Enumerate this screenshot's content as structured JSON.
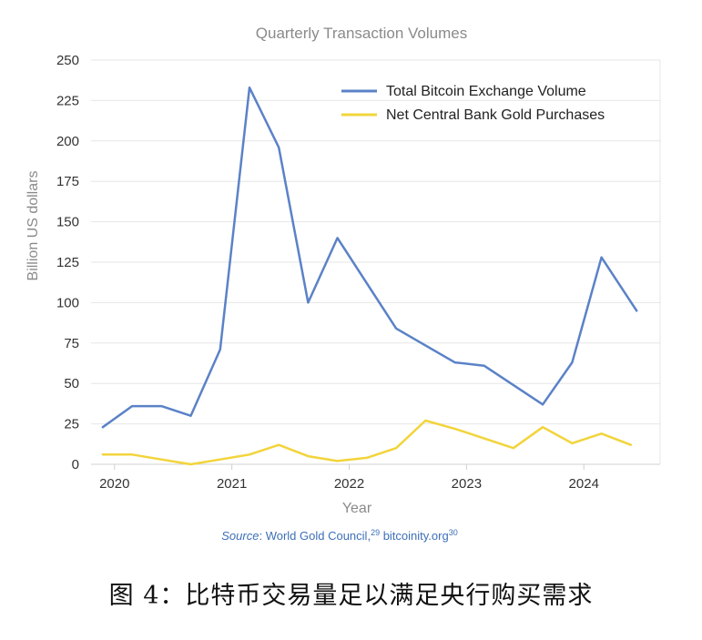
{
  "chart_data": {
    "type": "line",
    "title": "Quarterly Transaction Volumes",
    "xlabel": "Year",
    "ylabel": "Billion US dollars",
    "xlim": [
      2019.8,
      2024.65
    ],
    "ylim": [
      0,
      250
    ],
    "yticks": [
      0,
      25,
      50,
      75,
      100,
      125,
      150,
      175,
      200,
      225,
      250
    ],
    "xticks": [
      2020,
      2021,
      2022,
      2023,
      2024
    ],
    "grid": true,
    "legend_position": "top-right",
    "series": [
      {
        "name": "Total Bitcoin Exchange Volume",
        "color": "#5b82c7",
        "x": [
          2019.9,
          2020.15,
          2020.4,
          2020.65,
          2020.9,
          2021.15,
          2021.4,
          2021.65,
          2021.9,
          2022.4,
          2022.9,
          2023.15,
          2023.65,
          2023.9,
          2024.15,
          2024.45
        ],
        "values": [
          23,
          36,
          36,
          30,
          71,
          233,
          196,
          100,
          140,
          84,
          63,
          61,
          37,
          63,
          128,
          95
        ]
      },
      {
        "name": "Net Central Bank Gold Purchases",
        "color": "#f2d43b",
        "x": [
          2019.9,
          2020.15,
          2020.4,
          2020.65,
          2020.9,
          2021.15,
          2021.4,
          2021.65,
          2021.9,
          2022.15,
          2022.4,
          2022.65,
          2022.9,
          2023.15,
          2023.4,
          2023.65,
          2023.9,
          2024.15,
          2024.4
        ],
        "values": [
          6,
          6,
          3,
          0,
          3,
          6,
          12,
          5,
          2,
          4,
          10,
          27,
          22,
          16,
          10,
          23,
          13,
          19,
          12
        ]
      }
    ],
    "source_prefix": "Source",
    "source_text": ": World Gold Council,",
    "source_ref1": "29",
    "source_text2": " bitcoinity.org",
    "source_ref2": "30"
  },
  "caption": "图 4：比特币交易量足以满足央行购买需求"
}
